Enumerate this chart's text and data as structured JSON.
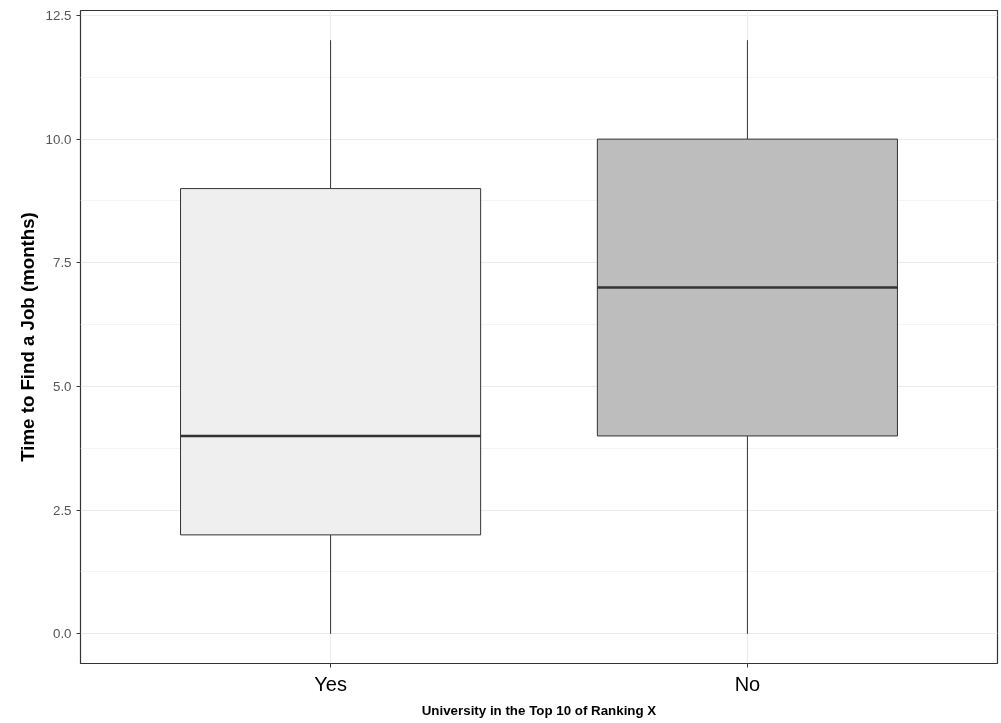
{
  "chart_data": {
    "type": "box",
    "xlabel": "University in the Top 10 of Ranking X",
    "ylabel": "Time to Find a Job (months)",
    "categories": [
      "Yes",
      "No"
    ],
    "boxes": [
      {
        "low": 0,
        "q1": 2,
        "median": 4,
        "q3": 9,
        "high": 12
      },
      {
        "low": 0,
        "q1": 4,
        "median": 7,
        "q3": 10,
        "high": 12
      }
    ],
    "colors": [
      "#efefef",
      "#bdbdbd"
    ],
    "ylim": [
      -0.6,
      12.6
    ],
    "yticks": [
      {
        "value": 0,
        "label": "0.0"
      },
      {
        "value": 2.5,
        "label": "2.5"
      },
      {
        "value": 5,
        "label": "5.0"
      },
      {
        "value": 7.5,
        "label": "7.5"
      },
      {
        "value": 10,
        "label": "10.0"
      },
      {
        "value": 12.5,
        "label": "12.5"
      }
    ],
    "grid": true
  }
}
